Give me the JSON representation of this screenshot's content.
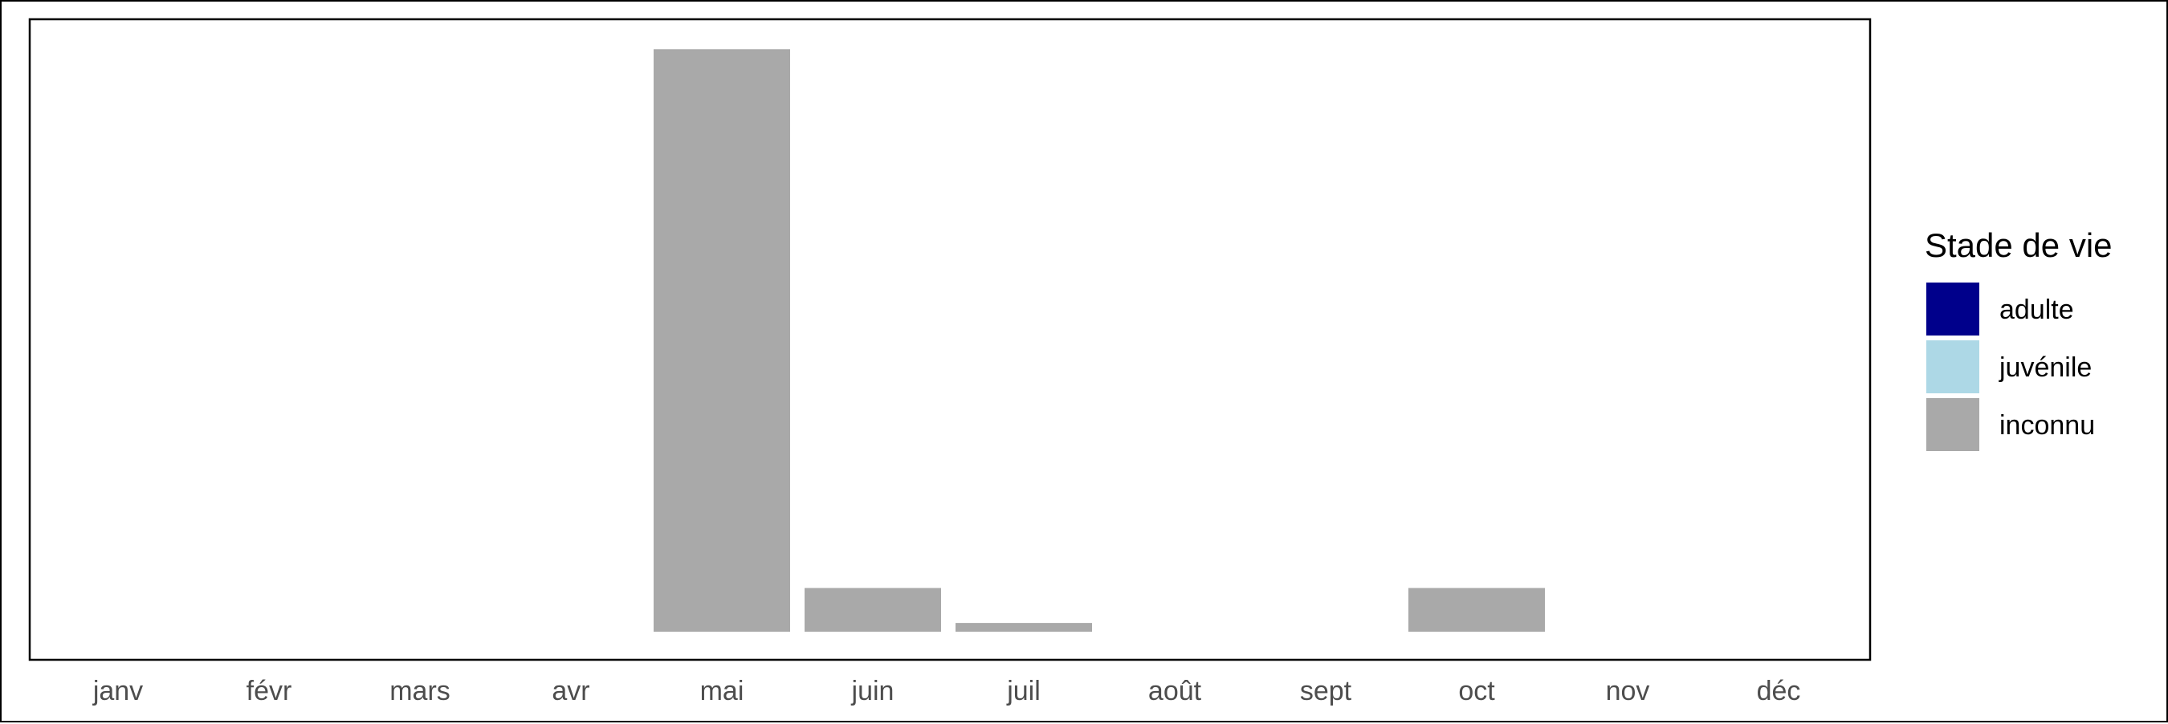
{
  "chart_data": {
    "type": "bar",
    "stacked": true,
    "categories": [
      "janv",
      "févr",
      "mars",
      "avr",
      "mai",
      "juin",
      "juil",
      "août",
      "sept",
      "oct",
      "nov",
      "déc"
    ],
    "series": [
      {
        "name": "adulte",
        "color": "#00008B",
        "values": [
          0,
          0,
          0,
          0,
          0,
          0,
          0,
          0,
          0,
          0,
          0,
          0
        ]
      },
      {
        "name": "juvénile",
        "color": "#ADD8E6",
        "values": [
          0,
          0,
          0,
          0,
          0,
          0,
          0,
          0,
          0,
          0,
          0,
          0
        ]
      },
      {
        "name": "inconnu",
        "color": "#A9A9A9",
        "values": [
          0,
          0,
          0,
          0,
          100,
          7.5,
          1.5,
          0,
          0,
          7.5,
          0,
          0
        ]
      }
    ],
    "title": "",
    "xlabel": "",
    "ylabel": "",
    "ylim": [
      0,
      105
    ],
    "y_axis_visible": false,
    "grid": false,
    "legend": {
      "title": "Stade de vie",
      "position": "right"
    }
  }
}
